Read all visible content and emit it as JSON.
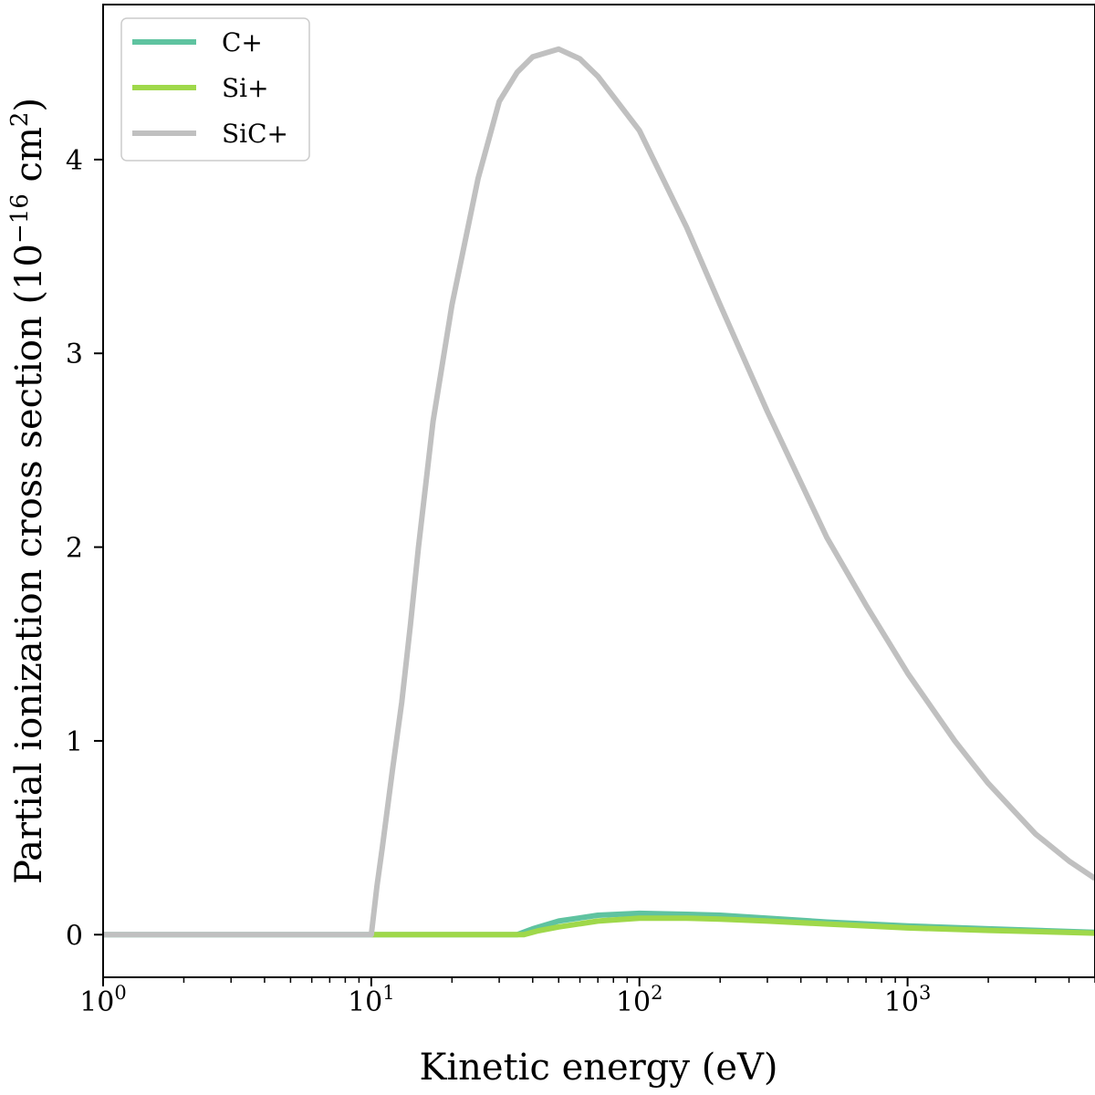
{
  "chart_data": {
    "type": "line",
    "xscale": "log",
    "xlim": [
      1,
      5000
    ],
    "ylim": [
      -0.22,
      4.8
    ],
    "xlabel": "Kinetic energy (eV)",
    "ylabel": {
      "prefix": "Partial ionization cross section (10",
      "exponent": "−16",
      "middle": " cm",
      "exponent2": "2",
      "suffix": ")"
    },
    "xticks": [
      {
        "value": 1,
        "base": "10",
        "exp": "0"
      },
      {
        "value": 10,
        "base": "10",
        "exp": "1"
      },
      {
        "value": 100,
        "base": "10",
        "exp": "2"
      },
      {
        "value": 1000,
        "base": "10",
        "exp": "3"
      }
    ],
    "yticks": [
      {
        "value": 0,
        "label": "0"
      },
      {
        "value": 1,
        "label": "1"
      },
      {
        "value": 2,
        "label": "2"
      },
      {
        "value": 3,
        "label": "3"
      },
      {
        "value": 4,
        "label": "4"
      }
    ],
    "legend": {
      "position": "top-left"
    },
    "series": [
      {
        "name": "C+",
        "color": "#5fc3a0",
        "points": [
          [
            1,
            0
          ],
          [
            35,
            0
          ],
          [
            40,
            0.03
          ],
          [
            50,
            0.07
          ],
          [
            70,
            0.1
          ],
          [
            100,
            0.11
          ],
          [
            150,
            0.105
          ],
          [
            200,
            0.1
          ],
          [
            300,
            0.085
          ],
          [
            500,
            0.065
          ],
          [
            1000,
            0.045
          ],
          [
            2000,
            0.03
          ],
          [
            5000,
            0.012
          ]
        ]
      },
      {
        "name": "Si+",
        "color": "#9fd84a",
        "points": [
          [
            10,
            0
          ],
          [
            37,
            0
          ],
          [
            42,
            0.02
          ],
          [
            50,
            0.04
          ],
          [
            70,
            0.07
          ],
          [
            100,
            0.085
          ],
          [
            150,
            0.085
          ],
          [
            200,
            0.08
          ],
          [
            300,
            0.07
          ],
          [
            500,
            0.055
          ],
          [
            1000,
            0.035
          ],
          [
            2000,
            0.022
          ],
          [
            5000,
            0.008
          ]
        ]
      },
      {
        "name": "SiC+",
        "color": "#c0c0c0",
        "points": [
          [
            1,
            0
          ],
          [
            10,
            0
          ],
          [
            10.5,
            0.25
          ],
          [
            11,
            0.45
          ],
          [
            12,
            0.85
          ],
          [
            13,
            1.2
          ],
          [
            14,
            1.6
          ],
          [
            15,
            2.0
          ],
          [
            17,
            2.65
          ],
          [
            20,
            3.25
          ],
          [
            25,
            3.9
          ],
          [
            30,
            4.3
          ],
          [
            35,
            4.45
          ],
          [
            40,
            4.53
          ],
          [
            50,
            4.57
          ],
          [
            60,
            4.52
          ],
          [
            70,
            4.43
          ],
          [
            100,
            4.15
          ],
          [
            150,
            3.65
          ],
          [
            200,
            3.25
          ],
          [
            300,
            2.7
          ],
          [
            500,
            2.05
          ],
          [
            700,
            1.7
          ],
          [
            1000,
            1.35
          ],
          [
            1500,
            1.0
          ],
          [
            2000,
            0.78
          ],
          [
            3000,
            0.52
          ],
          [
            4000,
            0.38
          ],
          [
            5000,
            0.29
          ]
        ]
      }
    ]
  }
}
